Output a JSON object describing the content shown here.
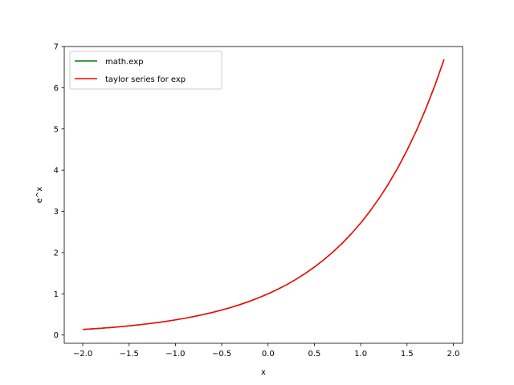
{
  "chart_data": {
    "type": "line",
    "xlabel": "x",
    "ylabel": "e^x",
    "xlim": [
      -2.2,
      2.1
    ],
    "ylim": [
      -0.2,
      7.0
    ],
    "xticks": [
      -2.0,
      -1.5,
      -1.0,
      -0.5,
      0.0,
      0.5,
      1.0,
      1.5,
      2.0
    ],
    "xtick_labels": [
      "−2.0",
      "−1.5",
      "−1.0",
      "−0.5",
      "0.0",
      "0.5",
      "1.0",
      "1.5",
      "2.0"
    ],
    "yticks": [
      0,
      1,
      2,
      3,
      4,
      5,
      6,
      7
    ],
    "ytick_labels": [
      "0",
      "1",
      "2",
      "3",
      "4",
      "5",
      "6",
      "7"
    ],
    "grid": false,
    "legend_position": "top-left",
    "series": [
      {
        "name": "math.exp",
        "color": "#008000",
        "x": [
          -2.0,
          -1.9,
          -1.8,
          -1.7,
          -1.6,
          -1.5,
          -1.4,
          -1.3,
          -1.2,
          -1.1,
          -1.0,
          -0.9,
          -0.8,
          -0.7,
          -0.6,
          -0.5,
          -0.4,
          -0.3,
          -0.2,
          -0.1,
          0.0,
          0.1,
          0.2,
          0.3,
          0.4,
          0.5,
          0.6,
          0.7,
          0.8,
          0.9,
          1.0,
          1.1,
          1.2,
          1.3,
          1.4,
          1.5,
          1.6,
          1.7,
          1.8,
          1.9
        ],
        "y": [
          0.135,
          0.15,
          0.165,
          0.183,
          0.202,
          0.223,
          0.247,
          0.273,
          0.301,
          0.333,
          0.368,
          0.407,
          0.449,
          0.497,
          0.549,
          0.607,
          0.67,
          0.741,
          0.819,
          0.905,
          1.0,
          1.105,
          1.221,
          1.35,
          1.492,
          1.649,
          1.822,
          2.014,
          2.226,
          2.46,
          2.718,
          3.004,
          3.32,
          3.669,
          4.055,
          4.482,
          4.953,
          5.474,
          6.05,
          6.686
        ]
      },
      {
        "name": "taylor series for exp",
        "color": "#ff0000",
        "x": [
          -2.0,
          -1.9,
          -1.8,
          -1.7,
          -1.6,
          -1.5,
          -1.4,
          -1.3,
          -1.2,
          -1.1,
          -1.0,
          -0.9,
          -0.8,
          -0.7,
          -0.6,
          -0.5,
          -0.4,
          -0.3,
          -0.2,
          -0.1,
          0.0,
          0.1,
          0.2,
          0.3,
          0.4,
          0.5,
          0.6,
          0.7,
          0.8,
          0.9,
          1.0,
          1.1,
          1.2,
          1.3,
          1.4,
          1.5,
          1.6,
          1.7,
          1.8,
          1.9
        ],
        "y": [
          0.135,
          0.15,
          0.165,
          0.183,
          0.202,
          0.223,
          0.247,
          0.273,
          0.301,
          0.333,
          0.368,
          0.407,
          0.449,
          0.497,
          0.549,
          0.607,
          0.67,
          0.741,
          0.819,
          0.905,
          1.0,
          1.105,
          1.221,
          1.35,
          1.492,
          1.649,
          1.822,
          2.014,
          2.226,
          2.46,
          2.718,
          3.004,
          3.32,
          3.669,
          4.055,
          4.482,
          4.953,
          5.474,
          6.05,
          6.686
        ]
      }
    ]
  }
}
